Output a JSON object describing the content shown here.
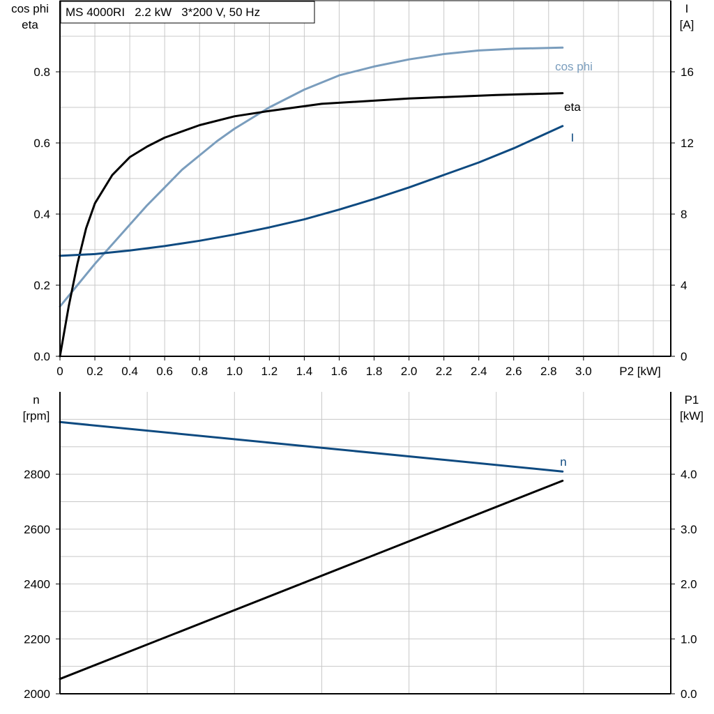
{
  "colors": {
    "cos_phi": "#7a9dbd",
    "eta": "#000000",
    "current": "#0e4a80",
    "speed": "#0e4a80",
    "p1": "#000000",
    "grid": "#c8c8c8"
  },
  "chart_data": [
    {
      "type": "line",
      "title": "MS 4000RI   2.2 kW   3*200 V, 50 Hz",
      "xlabel": "P2 [kW]",
      "ylabel_left_line1": "cos phi",
      "ylabel_left_line2": "eta",
      "ylabel_right_line1": "I",
      "ylabel_right_line2": "[A]",
      "xlim": [
        0,
        3.5
      ],
      "ylim_left": [
        0,
        1.0
      ],
      "ylim_right": [
        0,
        20
      ],
      "x_ticks": [
        "0",
        "0.2",
        "0.4",
        "0.6",
        "0.8",
        "1.0",
        "1.2",
        "1.4",
        "1.6",
        "1.8",
        "2.0",
        "2.2",
        "2.4",
        "2.6",
        "2.8",
        "3.0"
      ],
      "y_ticks_left": [
        "0.0",
        "0.2",
        "0.4",
        "0.6",
        "0.8"
      ],
      "y_ticks_right": [
        "0",
        "4",
        "8",
        "12",
        "16"
      ],
      "grid": true,
      "series": [
        {
          "name": "cos phi",
          "axis": "left",
          "x": [
            0,
            0.1,
            0.2,
            0.3,
            0.4,
            0.5,
            0.6,
            0.7,
            0.8,
            0.9,
            1.0,
            1.2,
            1.4,
            1.6,
            1.8,
            2.0,
            2.2,
            2.4,
            2.6,
            2.88
          ],
          "y": [
            0.14,
            0.2,
            0.26,
            0.315,
            0.37,
            0.425,
            0.475,
            0.525,
            0.565,
            0.605,
            0.64,
            0.7,
            0.75,
            0.79,
            0.815,
            0.835,
            0.85,
            0.86,
            0.865,
            0.868
          ]
        },
        {
          "name": "eta",
          "axis": "left",
          "x": [
            0,
            0.05,
            0.1,
            0.15,
            0.2,
            0.3,
            0.4,
            0.5,
            0.6,
            0.8,
            1.0,
            1.2,
            1.5,
            2.0,
            2.5,
            2.88
          ],
          "y": [
            0.0,
            0.14,
            0.26,
            0.36,
            0.43,
            0.51,
            0.56,
            0.59,
            0.615,
            0.65,
            0.675,
            0.69,
            0.71,
            0.725,
            0.735,
            0.74
          ]
        },
        {
          "name": "I",
          "axis": "right",
          "x": [
            0,
            0.2,
            0.4,
            0.6,
            0.8,
            1.0,
            1.2,
            1.4,
            1.6,
            1.8,
            2.0,
            2.2,
            2.4,
            2.6,
            2.88
          ],
          "y": [
            5.65,
            5.75,
            5.95,
            6.2,
            6.5,
            6.85,
            7.25,
            7.7,
            8.25,
            8.85,
            9.5,
            10.2,
            10.9,
            11.7,
            12.95
          ]
        }
      ]
    },
    {
      "type": "line",
      "xlim": [
        0,
        3.5
      ],
      "ylabel_left_line1": "n",
      "ylabel_left_line2": "[rpm]",
      "ylabel_right_line1": "P1",
      "ylabel_right_line2": "[kW]",
      "ylim_left": [
        2000,
        3000
      ],
      "ylim_right": [
        0.0,
        5.0
      ],
      "y_ticks_left": [
        "2000",
        "2200",
        "2400",
        "2600",
        "2800"
      ],
      "y_ticks_right": [
        "0.0",
        "1.0",
        "2.0",
        "3.0",
        "4.0"
      ],
      "grid": true,
      "series": [
        {
          "name": "n",
          "axis": "left",
          "x": [
            0,
            2.88
          ],
          "y": [
            2990,
            2810
          ]
        },
        {
          "name": "",
          "axis": "right",
          "x": [
            0,
            2.88
          ],
          "y": [
            0.27,
            3.88
          ]
        }
      ]
    }
  ]
}
